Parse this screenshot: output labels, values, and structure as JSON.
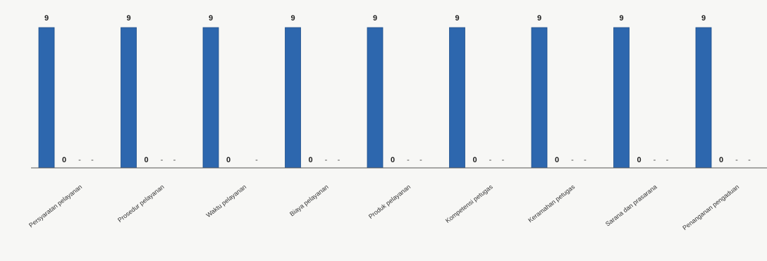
{
  "chart_data": {
    "type": "bar",
    "categories": [
      "Persyaratan pelayanan",
      "Prosedur pelayanan",
      "Waktu pelayanan",
      "Biaya pelayanan",
      "Produk pelayanan",
      "Kompetensi petugas",
      "Keramahan petugas",
      "Sarana dan prasarana",
      "Penanganan pengaduan"
    ],
    "series": [
      {
        "values": [
          9,
          9,
          9,
          9,
          9,
          9,
          9,
          9,
          9
        ],
        "color": "#2d67ae"
      },
      {
        "values": [
          0,
          0,
          0,
          0,
          0,
          0,
          0,
          0,
          0
        ],
        "color": "#c0392b"
      }
    ],
    "empty_series_labels": [
      [
        "-",
        "-"
      ],
      [
        "-",
        "-"
      ],
      [
        "",
        "-"
      ],
      [
        "-",
        "-"
      ],
      [
        "-",
        "-"
      ],
      [
        "-",
        "-"
      ],
      [
        "-",
        "-"
      ],
      [
        "-",
        "-"
      ],
      [
        "-",
        "-"
      ]
    ],
    "ylim": [
      0,
      9.5
    ],
    "grid": false,
    "legend": "none",
    "title": "",
    "xlabel": "",
    "ylabel": ""
  }
}
